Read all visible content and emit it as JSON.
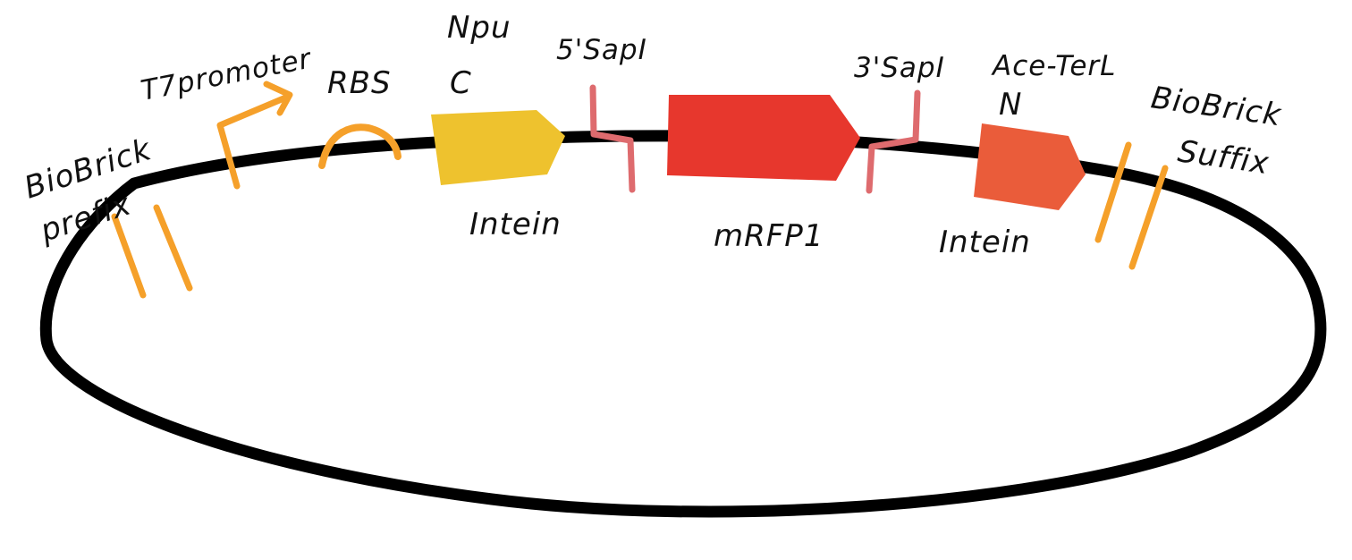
{
  "colors": {
    "backbone": "#000000",
    "promoter": "#F5A02A",
    "rbs": "#F5A02A",
    "biobrick": "#F5A02A",
    "intein_c": "#EEC22E",
    "mrfp1": "#E7372D",
    "intein_n": "#EA5C3A",
    "sapi_site": "#DE6B6E",
    "text": "#111111"
  },
  "labels": {
    "prefix_line1": "BioBrick",
    "prefix_line2": "prefix",
    "promoter": "T7promoter",
    "rbs": "RBS",
    "npu_line1": "Npu",
    "npu_line2": "C",
    "sap5": "5'SapI",
    "sap3": "3'SapI",
    "ace_line1": "Ace-TerL",
    "ace_line2": "N",
    "suffix_line1": "BioBrick",
    "suffix_line2": "Suffix",
    "intein_left": "Intein",
    "mrfp1": "mRFP1",
    "intein_right": "Intein"
  },
  "icons": [
    "promoter-arrow-icon",
    "rbs-arc-icon",
    "restriction-site-icon",
    "cds-arrow-icon"
  ]
}
